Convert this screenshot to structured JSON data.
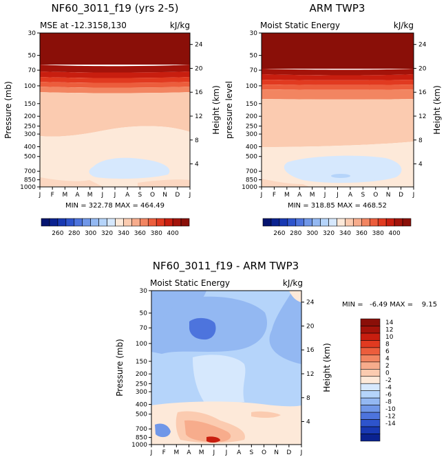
{
  "chart_data": [
    {
      "type": "contour",
      "title": "NF60_3011_f19 (yrs 2-5)",
      "subtitle_left": "MSE at -12.3158,130",
      "units": "kJ/kg",
      "months": [
        "J",
        "F",
        "M",
        "A",
        "M",
        "J",
        "J",
        "A",
        "S",
        "O",
        "N",
        "D",
        "J"
      ],
      "y_left_label": "Pressure (mb)",
      "y_left_ticks": [
        "30",
        "50",
        "70",
        "100",
        "150",
        "200",
        "250",
        "300",
        "400",
        "500",
        "700",
        "850",
        "1000"
      ],
      "y_right_label": "Height (km)",
      "y_right_ticks": [
        "24",
        "20",
        "16",
        "12",
        "8",
        "4"
      ],
      "stats": "MIN = 322.78 MAX = 464.49",
      "colorbar_ticks": [
        "260",
        "280",
        "300",
        "320",
        "340",
        "360",
        "380",
        "400"
      ]
    },
    {
      "type": "contour",
      "title": "ARM TWP3",
      "subtitle_left": "Moist Static Energy",
      "units": "kJ/kg",
      "months": [
        "J",
        "F",
        "M",
        "A",
        "M",
        "J",
        "J",
        "A",
        "S",
        "O",
        "N",
        "D",
        "J"
      ],
      "y_left_label": "pressure level",
      "y_left_ticks": [
        "30",
        "50",
        "70",
        "100",
        "150",
        "200",
        "250",
        "300",
        "400",
        "500",
        "700",
        "850",
        "1000"
      ],
      "y_right_label": "Height (km)",
      "y_right_ticks": [
        "24",
        "20",
        "16",
        "12",
        "8",
        "4"
      ],
      "stats": "MIN = 318.85 MAX = 468.52",
      "colorbar_ticks": [
        "260",
        "280",
        "300",
        "320",
        "340",
        "360",
        "380",
        "400"
      ]
    },
    {
      "type": "contour",
      "title": "NF60_3011_f19 - ARM TWP3",
      "subtitle_left": "Moist Static Energy",
      "units": "kJ/kg",
      "months": [
        "J",
        "F",
        "M",
        "A",
        "M",
        "J",
        "J",
        "A",
        "S",
        "O",
        "N",
        "D",
        "J"
      ],
      "y_left_label": "Pressure (mb)",
      "y_left_ticks": [
        "30",
        "50",
        "70",
        "100",
        "150",
        "200",
        "250",
        "300",
        "400",
        "500",
        "700",
        "850",
        "1000"
      ],
      "y_right_label": "Height (km)",
      "y_right_ticks": [
        "24",
        "20",
        "16",
        "12",
        "8",
        "4"
      ],
      "stats": "MIN =   -6.49 MAX =    9.15",
      "colorbar_ticks": [
        "14",
        "12",
        "10",
        "8",
        "6",
        "4",
        "2",
        "0",
        "-2",
        "-4",
        "-6",
        "-8",
        "-10",
        "-12",
        "-14"
      ]
    }
  ],
  "colors": {
    "warm": [
      "#fde9d9",
      "#fbcbb0",
      "#f7ac8c",
      "#f28561",
      "#ec5d3c",
      "#e13a20",
      "#c81e0f",
      "#a3130a",
      "#8a0f08"
    ],
    "cool": [
      "#d6e8fd",
      "#b5d4fa",
      "#93b8f2",
      "#7097e8",
      "#4d74dd",
      "#2e54cc",
      "#1838b2",
      "#0a2290",
      "#051470"
    ]
  }
}
